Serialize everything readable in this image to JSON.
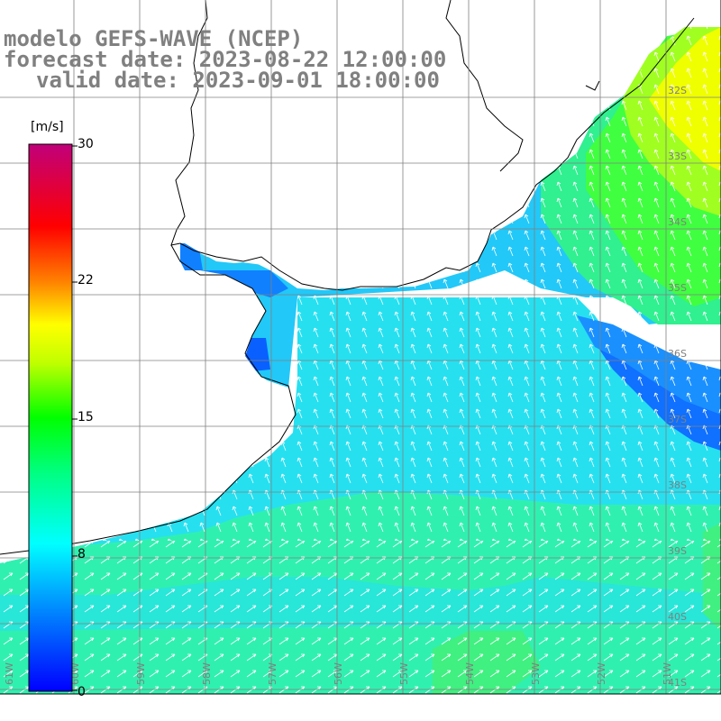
{
  "header": {
    "model": "modelo GEFS-WAVE (NCEP)",
    "forecast_date": "forecast date: 2023-08-22 12:00:00",
    "valid_date": "valid date: 2023-09-01 18:00:00"
  },
  "colorbar": {
    "unit": "[m/s]",
    "ticks": [
      "30",
      "22",
      "15",
      "8",
      "0"
    ],
    "min": 0,
    "max": 30
  },
  "grid": {
    "lat_labels": [
      "32S",
      "33S",
      "34S",
      "35S",
      "36S",
      "37S",
      "38S",
      "39S",
      "40S",
      "41S"
    ],
    "lon_labels": [
      "61W",
      "60W",
      "59W",
      "58W",
      "57W",
      "56W",
      "55W",
      "54W",
      "53W",
      "52W",
      "51W"
    ]
  },
  "colors": {
    "land": "#ffffff",
    "coast": "#000000",
    "grid": "#808080",
    "arrows": "#ffffff"
  }
}
